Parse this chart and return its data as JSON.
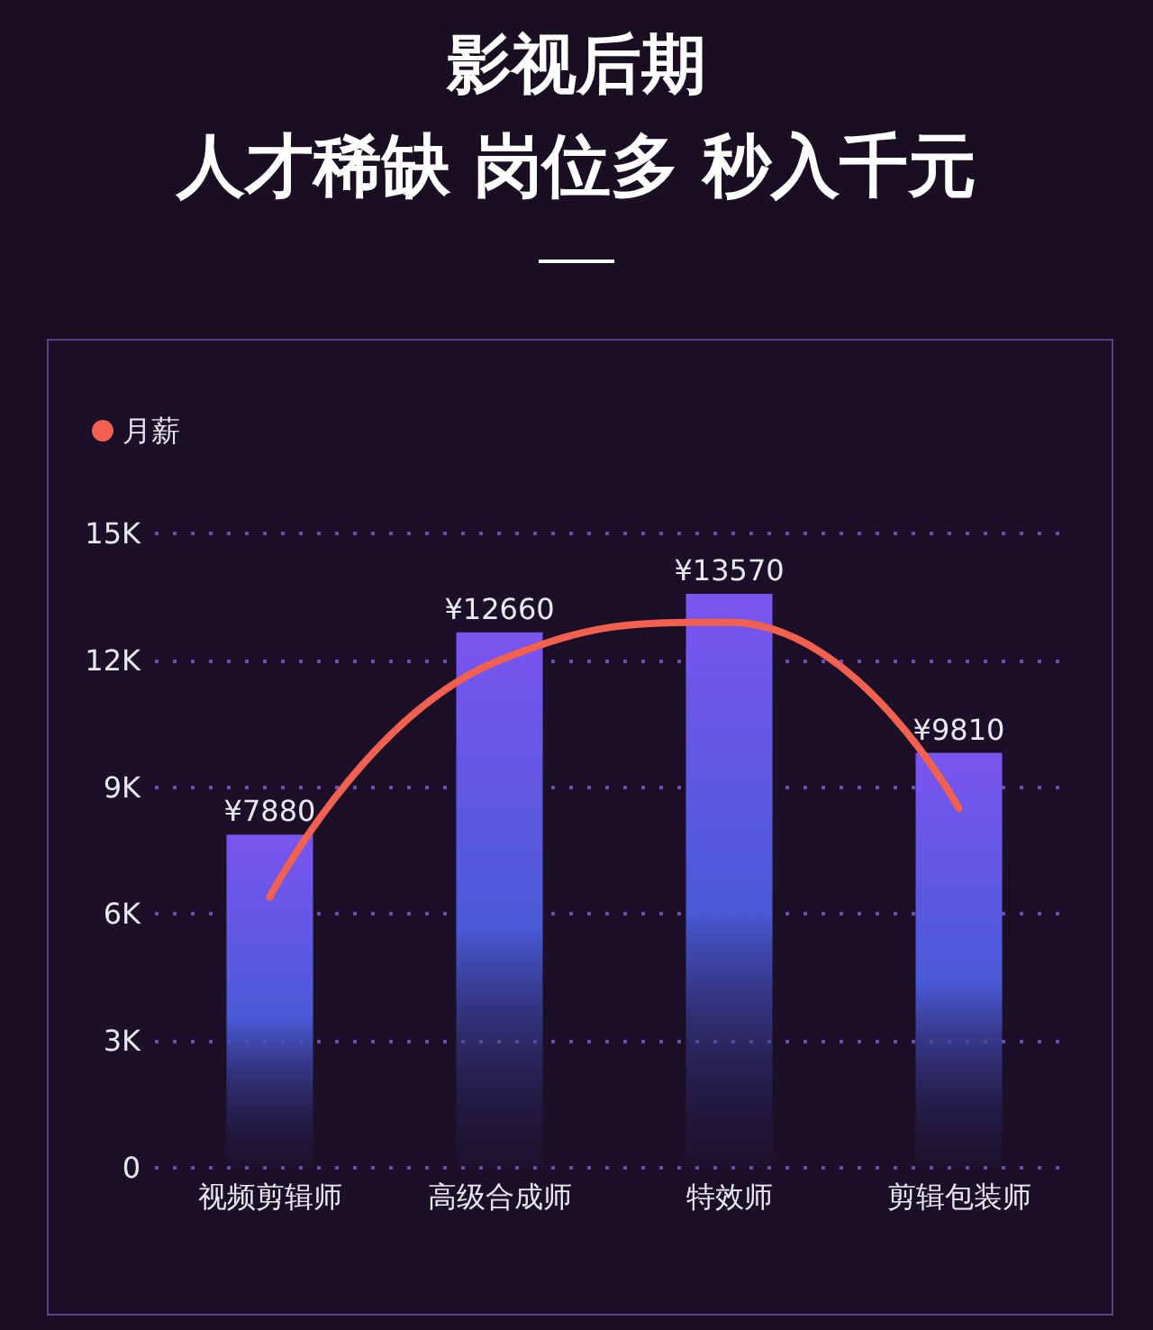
{
  "chart_data": {
    "type": "bar",
    "title": "影视后期",
    "subtitle": "人才稀缺 岗位多 秒入千元",
    "categories": [
      "视频剪辑师",
      "高级合成师",
      "特效师",
      "剪辑包装师"
    ],
    "series": [
      {
        "color": "#7a55f0",
        "values": [
          7880,
          12660,
          13570,
          9810
        ],
        "value_labels": [
          "¥7880",
          "¥12660",
          "¥13570",
          "¥9810"
        ]
      },
      {
        "type": "line",
        "name": "月薪",
        "color": "#f2604f",
        "values": [
          6400,
          12000,
          12900,
          8500
        ]
      }
    ],
    "ylim": [
      0,
      15000
    ],
    "yticks": [
      {
        "value": 0,
        "label": "0"
      },
      {
        "value": 3000,
        "label": "3K"
      },
      {
        "value": 6000,
        "label": "6K"
      },
      {
        "value": 9000,
        "label": "9K"
      },
      {
        "value": 12000,
        "label": "12K"
      },
      {
        "value": 15000,
        "label": "15K"
      }
    ],
    "grid": "y",
    "legend": "top left",
    "marker": "none",
    "line_style": "solid"
  }
}
